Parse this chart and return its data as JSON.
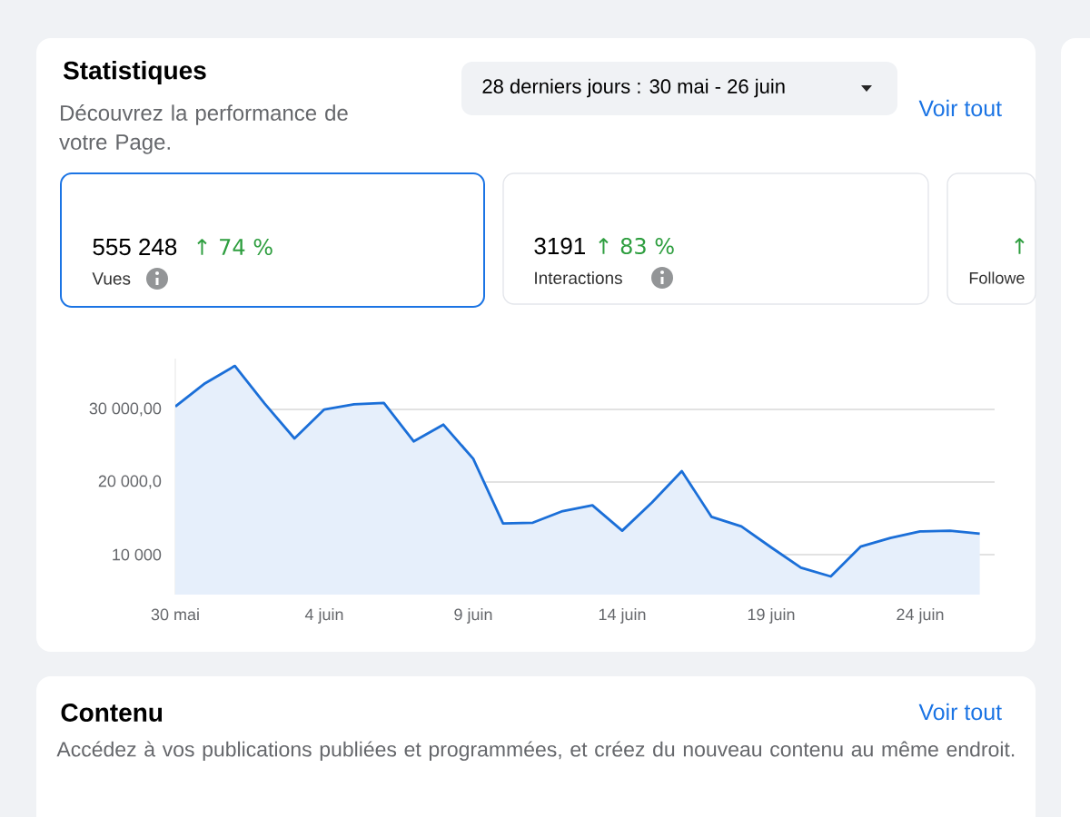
{
  "chart_data": {
    "type": "area",
    "title": "Statistiques",
    "subtitle": "Découvrez la performance de votre Page.",
    "categories": [
      "30 mai",
      null,
      null,
      null,
      null,
      "4 juin",
      null,
      null,
      null,
      null,
      "9 juin",
      null,
      null,
      null,
      null,
      "14 juin",
      null,
      null,
      null,
      null,
      "19 juin",
      null,
      null,
      null,
      null,
      "24 juin",
      null,
      null
    ],
    "series": [
      {
        "color": "#1b6fd8",
        "values": [
          30400,
          33600,
          36000,
          30800,
          26000,
          30000,
          30700,
          30900,
          25600,
          27900,
          23200,
          14300,
          14400,
          16000,
          16800,
          13300,
          17200,
          21500,
          15200,
          13900,
          11000,
          8200,
          7000,
          11100,
          12300,
          13200,
          13300,
          12900
        ]
      }
    ],
    "yticks": [
      {
        "value": 10000,
        "label": "10 000"
      },
      {
        "value": 20000,
        "label": "20 000,0"
      },
      {
        "value": 30000,
        "label": "30 000,00"
      }
    ],
    "ylim": [
      4500,
      37000
    ],
    "grid": "y",
    "annotations": [
      "28 derniers jours : 30 mai - 26 juin",
      "Voir tout",
      "555 248",
      "↑ 74 %",
      "Vues",
      "3191",
      "↑ 83 %",
      "Interactions",
      "↑",
      "Followe",
      "Contenu",
      "Voir tout",
      "Accédez à vos publications publiées et programmées, et créez du nouveau contenu au même endroit."
    ]
  }
}
